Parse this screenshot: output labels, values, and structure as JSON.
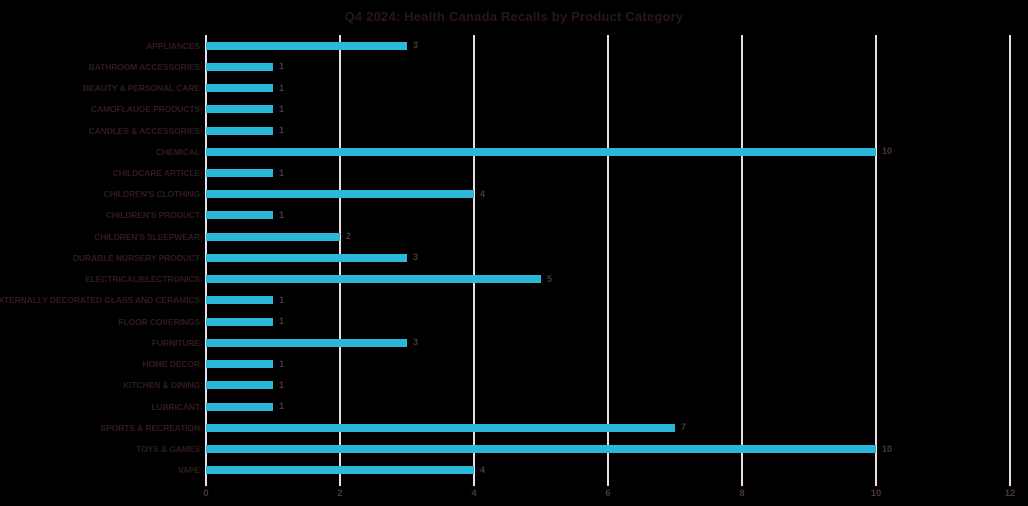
{
  "background_color": "#000000",
  "colors": {
    "bar": "#29b8d8",
    "gridline": "#e9dce7",
    "title_text": "#2a161d",
    "category_text": "#301b23",
    "value_text": "#4d3440",
    "tick_text": "#4d3440"
  },
  "chart_data": {
    "type": "bar",
    "orientation": "horizontal",
    "title": "Q4 2024: Health Canada Recalls by Product Category",
    "categories": [
      "APPLIANCES",
      "BATHROOM ACCESSORIES",
      "BEAUTY & PERSONAL CARE",
      "CAMOFLAUGE PRODUCTS",
      "CANDLES & ACCESSORIES",
      "CHEMICAL",
      "CHILDCARE ARTICLE",
      "CHILDREN'S CLOTHING",
      "CHILDREN'S PRODUCT",
      "CHILDREN'S SLEEPWEAR",
      "DURABLE NURSERY PRODUCT",
      "ELECTRICAL/ELECTRONICS",
      "EXTERNALLY DECORATED GLASS AND CERAMICS",
      "FLOOR COVERINGS",
      "FURNITURE",
      "HOME DÉCOR",
      "KITCHEN & DINING",
      "LUBRICANT",
      "SPORTS & RECREATION",
      "TOYS & GAMES",
      "VAPE"
    ],
    "values": [
      3,
      1,
      1,
      1,
      1,
      10,
      1,
      4,
      1,
      2,
      3,
      5,
      1,
      1,
      3,
      1,
      1,
      1,
      7,
      10,
      4
    ],
    "xlabel": "",
    "ylabel": "",
    "xlim": [
      0,
      12
    ],
    "x_ticks": [
      0,
      2,
      4,
      6,
      8,
      10,
      12
    ],
    "grid": "vertical",
    "legend": "none",
    "data_labels": true
  }
}
